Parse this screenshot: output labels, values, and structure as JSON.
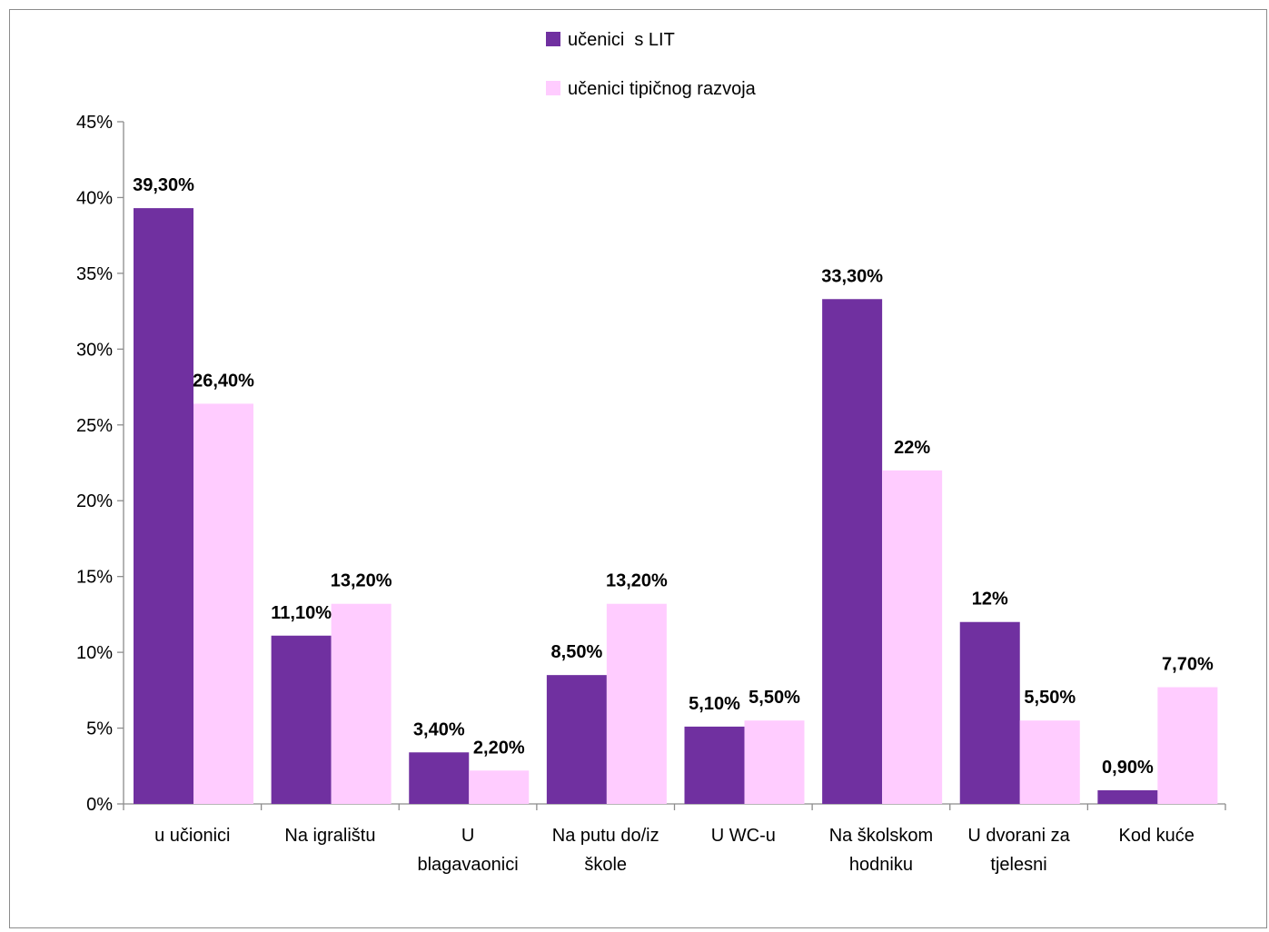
{
  "chart_data": {
    "type": "bar",
    "categories": [
      [
        "u učionici"
      ],
      [
        "Na igralištu"
      ],
      [
        "U",
        "blagavaonici"
      ],
      [
        "Na putu do/iz",
        "škole"
      ],
      [
        "U WC-u"
      ],
      [
        "Na školskom",
        "hodniku"
      ],
      [
        "U dvorani za",
        "tjelesni"
      ],
      [
        "Kod kuće"
      ]
    ],
    "series": [
      {
        "name": "učenici  s LIT",
        "color": "#7030a0",
        "values": [
          39.3,
          11.1,
          3.4,
          8.5,
          5.1,
          33.3,
          12,
          0.9
        ],
        "labels": [
          "39,30%",
          "11,10%",
          "3,40%",
          "8,50%",
          "5,10%",
          "33,30%",
          "12%",
          "0,90%"
        ]
      },
      {
        "name": "učenici tipičnog razvoja",
        "color": "#ffccff",
        "values": [
          26.4,
          13.2,
          2.2,
          13.2,
          5.5,
          22,
          5.5,
          7.7
        ],
        "labels": [
          "26,40%",
          "13,20%",
          "2,20%",
          "13,20%",
          "5,50%",
          "22%",
          "5,50%",
          "7,70%"
        ]
      }
    ],
    "ylim": [
      0,
      45
    ],
    "yticks": [
      0,
      5,
      10,
      15,
      20,
      25,
      30,
      35,
      40,
      45
    ],
    "ytick_labels": [
      "0%",
      "5%",
      "10%",
      "15%",
      "20%",
      "25%",
      "30%",
      "35%",
      "40%",
      "45%"
    ],
    "title": "",
    "xlabel": "",
    "ylabel": "",
    "legend_position": "top-center",
    "grid": false
  }
}
